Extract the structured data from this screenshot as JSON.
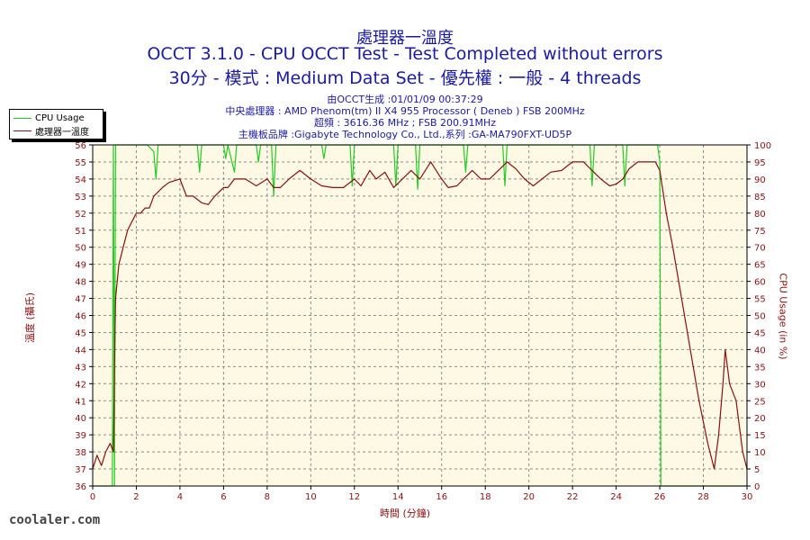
{
  "chart_data": {
    "type": "line",
    "title": "處理器一溫度",
    "subtitle1": "OCCT 3.1.0 - CPU OCCT Test - Test Completed without errors",
    "subtitle2": "30分 - 模式 : Medium Data Set - 優先權 : 一般 - 4 threads",
    "info": [
      "由OCCT生成 :01/01/09 00:37:29",
      "中央處理器 : AMD Phenom(tm) II X4 955 Processor ( Deneb ) FSB 200MHz",
      "超頻 : 3616.36 MHz ; FSB 200.91MHz",
      "主機板品牌 :Gigabyte Technology Co., Ltd.,系列 :GA-MA790FXT-UD5P"
    ],
    "xlabel": "時間 (分鐘)",
    "ylabel": "溫度 (攝氏)",
    "y2label": "CPU Usage (in %)",
    "xlim": [
      0,
      30
    ],
    "ylim": [
      36,
      56
    ],
    "y2lim": [
      0,
      100
    ],
    "x_ticks": [
      0,
      2,
      4,
      6,
      8,
      10,
      12,
      14,
      16,
      18,
      20,
      22,
      24,
      26,
      28,
      30
    ],
    "y_ticks": [
      36,
      37,
      38,
      39,
      40,
      41,
      42,
      43,
      44,
      45,
      46,
      47,
      48,
      49,
      50,
      51,
      52,
      53,
      54,
      55,
      56
    ],
    "y2_ticks": [
      0,
      5,
      10,
      15,
      20,
      25,
      30,
      35,
      40,
      45,
      50,
      55,
      60,
      65,
      70,
      75,
      80,
      85,
      90,
      95,
      100
    ],
    "grid": true,
    "legend_position": "top-left",
    "colors": {
      "cpu_usage": "#22cc22",
      "temperature": "#8b1010",
      "background": "#fdf9e4",
      "grid": "#8c8c8c",
      "title": "#1a1aa6"
    },
    "series": [
      {
        "name": "CPU Usage",
        "axis": "right",
        "points": [
          [
            0,
            0
          ],
          [
            0.9,
            0
          ],
          [
            0.95,
            100
          ],
          [
            1.0,
            0
          ],
          [
            1.05,
            100
          ],
          [
            2.5,
            100
          ],
          [
            2.8,
            98
          ],
          [
            2.9,
            90
          ],
          [
            3.0,
            100
          ],
          [
            4.8,
            100
          ],
          [
            4.9,
            92
          ],
          [
            5.0,
            100
          ],
          [
            6.0,
            100
          ],
          [
            6.1,
            96
          ],
          [
            6.2,
            100
          ],
          [
            6.5,
            92
          ],
          [
            6.6,
            100
          ],
          [
            7.5,
            100
          ],
          [
            7.6,
            95
          ],
          [
            7.7,
            100
          ],
          [
            8.2,
            100
          ],
          [
            8.3,
            85
          ],
          [
            8.4,
            100
          ],
          [
            10.5,
            100
          ],
          [
            10.6,
            96
          ],
          [
            10.7,
            100
          ],
          [
            11.8,
            100
          ],
          [
            11.9,
            88
          ],
          [
            12.0,
            100
          ],
          [
            13.8,
            100
          ],
          [
            13.9,
            88
          ],
          [
            14.0,
            100
          ],
          [
            14.8,
            100
          ],
          [
            14.9,
            87
          ],
          [
            15.0,
            100
          ],
          [
            17.0,
            100
          ],
          [
            17.1,
            92
          ],
          [
            17.2,
            100
          ],
          [
            18.8,
            100
          ],
          [
            18.9,
            88
          ],
          [
            19.0,
            100
          ],
          [
            22.8,
            100
          ],
          [
            22.9,
            88
          ],
          [
            23.0,
            100
          ],
          [
            24.3,
            100
          ],
          [
            24.4,
            88
          ],
          [
            24.5,
            100
          ],
          [
            25.9,
            100
          ],
          [
            26.0,
            95
          ],
          [
            26.05,
            0
          ],
          [
            30,
            0
          ]
        ]
      },
      {
        "name": "處理器一溫度",
        "axis": "left",
        "points": [
          [
            0,
            37
          ],
          [
            0.2,
            37.8
          ],
          [
            0.4,
            37.2
          ],
          [
            0.6,
            38
          ],
          [
            0.8,
            38.5
          ],
          [
            0.95,
            38
          ],
          [
            1.0,
            43
          ],
          [
            1.05,
            47
          ],
          [
            1.2,
            49
          ],
          [
            1.4,
            50
          ],
          [
            1.6,
            51
          ],
          [
            1.8,
            51.5
          ],
          [
            2.0,
            52
          ],
          [
            2.2,
            52
          ],
          [
            2.4,
            52.3
          ],
          [
            2.6,
            52.3
          ],
          [
            2.8,
            53
          ],
          [
            3.2,
            53.5
          ],
          [
            3.5,
            53.8
          ],
          [
            4.0,
            54
          ],
          [
            4.3,
            53
          ],
          [
            4.6,
            53
          ],
          [
            5.0,
            52.6
          ],
          [
            5.3,
            52.5
          ],
          [
            5.6,
            53
          ],
          [
            6.0,
            53.5
          ],
          [
            6.2,
            53.5
          ],
          [
            6.5,
            54
          ],
          [
            7.0,
            54
          ],
          [
            7.5,
            53.6
          ],
          [
            8.0,
            54
          ],
          [
            8.3,
            53.5
          ],
          [
            8.6,
            53.5
          ],
          [
            9.0,
            54
          ],
          [
            9.5,
            54.5
          ],
          [
            10.0,
            54
          ],
          [
            10.5,
            53.6
          ],
          [
            11.0,
            53.5
          ],
          [
            11.5,
            53.5
          ],
          [
            12.0,
            54
          ],
          [
            12.3,
            53.6
          ],
          [
            12.7,
            54.5
          ],
          [
            13.0,
            54
          ],
          [
            13.4,
            54.4
          ],
          [
            13.8,
            53.5
          ],
          [
            14.2,
            54
          ],
          [
            14.6,
            54.5
          ],
          [
            15.0,
            54
          ],
          [
            15.5,
            55
          ],
          [
            16.0,
            54
          ],
          [
            16.3,
            53.5
          ],
          [
            16.7,
            53.6
          ],
          [
            17.0,
            54
          ],
          [
            17.4,
            54.5
          ],
          [
            17.8,
            54
          ],
          [
            18.2,
            54
          ],
          [
            18.6,
            54.5
          ],
          [
            19.0,
            55
          ],
          [
            19.4,
            54.6
          ],
          [
            19.8,
            54
          ],
          [
            20.2,
            53.6
          ],
          [
            20.6,
            54
          ],
          [
            21.0,
            54.4
          ],
          [
            21.5,
            54.5
          ],
          [
            22.0,
            55
          ],
          [
            22.5,
            55
          ],
          [
            22.9,
            54.5
          ],
          [
            23.3,
            54
          ],
          [
            23.7,
            53.6
          ],
          [
            24.0,
            53.7
          ],
          [
            24.3,
            54
          ],
          [
            24.6,
            54.6
          ],
          [
            25.0,
            55
          ],
          [
            25.4,
            55
          ],
          [
            25.8,
            55
          ],
          [
            26.0,
            54.5
          ],
          [
            26.3,
            52
          ],
          [
            26.6,
            50
          ],
          [
            27.0,
            47
          ],
          [
            27.4,
            44
          ],
          [
            27.8,
            41
          ],
          [
            28.2,
            38.5
          ],
          [
            28.5,
            37
          ],
          [
            28.7,
            39
          ],
          [
            28.9,
            42
          ],
          [
            29.0,
            44
          ],
          [
            29.2,
            42
          ],
          [
            29.5,
            41
          ],
          [
            29.8,
            38
          ],
          [
            30.0,
            37
          ]
        ]
      }
    ]
  },
  "watermark": "coolaler.com"
}
